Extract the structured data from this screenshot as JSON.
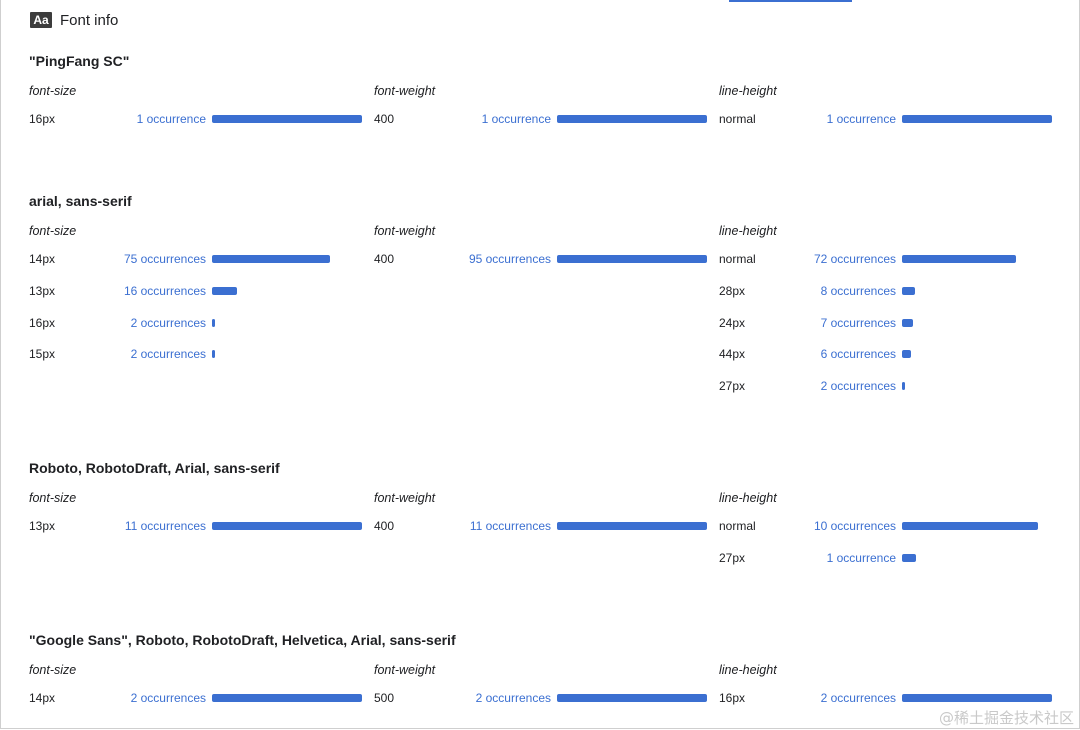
{
  "header": {
    "icon_label": "Aa",
    "title": "Font info"
  },
  "watermark": "@稀土掘金技术社区",
  "colors": {
    "bar": "#3b6fd1",
    "count_text": "#3b6fd1"
  },
  "sections": [
    {
      "family": "\"PingFang SC\"",
      "columns": [
        {
          "title": "font-size",
          "rows": [
            {
              "value": "16px",
              "count": 1,
              "label": "1 occurrence",
              "fraction": 1.0
            }
          ]
        },
        {
          "title": "font-weight",
          "rows": [
            {
              "value": "400",
              "count": 1,
              "label": "1 occurrence",
              "fraction": 1.0
            }
          ]
        },
        {
          "title": "line-height",
          "rows": [
            {
              "value": "normal",
              "count": 1,
              "label": "1 occurrence",
              "fraction": 1.0
            }
          ]
        }
      ]
    },
    {
      "family": "arial, sans-serif",
      "columns": [
        {
          "title": "font-size",
          "rows": [
            {
              "value": "14px",
              "count": 75,
              "label": "75 occurrences",
              "fraction": 0.789
            },
            {
              "value": "13px",
              "count": 16,
              "label": "16 occurrences",
              "fraction": 0.168
            },
            {
              "value": "16px",
              "count": 2,
              "label": "2 occurrences",
              "fraction": 0.021
            },
            {
              "value": "15px",
              "count": 2,
              "label": "2 occurrences",
              "fraction": 0.021
            }
          ]
        },
        {
          "title": "font-weight",
          "rows": [
            {
              "value": "400",
              "count": 95,
              "label": "95 occurrences",
              "fraction": 1.0
            }
          ]
        },
        {
          "title": "line-height",
          "rows": [
            {
              "value": "normal",
              "count": 72,
              "label": "72 occurrences",
              "fraction": 0.758
            },
            {
              "value": "28px",
              "count": 8,
              "label": "8 occurrences",
              "fraction": 0.084
            },
            {
              "value": "24px",
              "count": 7,
              "label": "7 occurrences",
              "fraction": 0.074
            },
            {
              "value": "44px",
              "count": 6,
              "label": "6 occurrences",
              "fraction": 0.063
            },
            {
              "value": "27px",
              "count": 2,
              "label": "2 occurrences",
              "fraction": 0.021
            }
          ]
        }
      ]
    },
    {
      "family": "Roboto, RobotoDraft, Arial, sans-serif",
      "columns": [
        {
          "title": "font-size",
          "rows": [
            {
              "value": "13px",
              "count": 11,
              "label": "11 occurrences",
              "fraction": 1.0
            }
          ]
        },
        {
          "title": "font-weight",
          "rows": [
            {
              "value": "400",
              "count": 11,
              "label": "11 occurrences",
              "fraction": 1.0
            }
          ]
        },
        {
          "title": "line-height",
          "rows": [
            {
              "value": "normal",
              "count": 10,
              "label": "10 occurrences",
              "fraction": 0.909
            },
            {
              "value": "27px",
              "count": 1,
              "label": "1 occurrence",
              "fraction": 0.091
            }
          ]
        }
      ]
    },
    {
      "family": "\"Google Sans\", Roboto, RobotoDraft, Helvetica, Arial, sans-serif",
      "columns": [
        {
          "title": "font-size",
          "rows": [
            {
              "value": "14px",
              "count": 2,
              "label": "2 occurrences",
              "fraction": 1.0
            }
          ]
        },
        {
          "title": "font-weight",
          "rows": [
            {
              "value": "500",
              "count": 2,
              "label": "2 occurrences",
              "fraction": 1.0
            }
          ]
        },
        {
          "title": "line-height",
          "rows": [
            {
              "value": "16px",
              "count": 2,
              "label": "2 occurrences",
              "fraction": 1.0
            }
          ]
        }
      ]
    }
  ]
}
